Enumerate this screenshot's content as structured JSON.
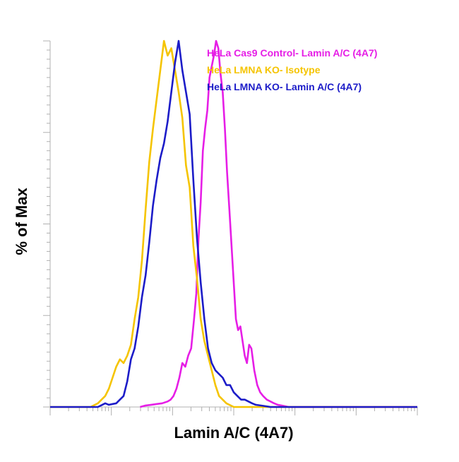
{
  "chart_data": {
    "type": "line",
    "title": "",
    "xlabel": "Lamin A/C (4A7)",
    "ylabel": "% of Max",
    "x_scale": "log",
    "xlim": [
      0,
      100
    ],
    "ylim": [
      0,
      100
    ],
    "grid": false,
    "legend_position": "top-right",
    "x_tick_labels": [],
    "y_tick_labels": [],
    "series": [
      {
        "name": "HeLa Cas9 Control- Lamin A/C (4A7)",
        "color": "#e61ee6",
        "x": [
          24.5,
          26,
          27.5,
          29,
          30.5,
          32,
          32.8,
          33.6,
          34.4,
          35.2,
          36,
          36.8,
          37.6,
          38.4,
          39.2,
          39.8,
          40.4,
          41,
          41.6,
          42.2,
          42.8,
          43.4,
          44,
          44.6,
          45.2,
          45.8,
          46.4,
          47,
          47.6,
          48.2,
          48.8,
          49.4,
          50,
          50.6,
          51.2,
          51.8,
          52.4,
          53,
          53.6,
          54.2,
          54.8,
          55.6,
          56.4,
          57.2,
          58,
          59,
          60,
          61,
          62,
          63.5,
          65,
          100
        ],
        "y": [
          0,
          0.4,
          0.6,
          0.8,
          1,
          1.5,
          2,
          3,
          5,
          8,
          12,
          11,
          14,
          16,
          24,
          31,
          46,
          56,
          70,
          76,
          81,
          90,
          93,
          96,
          100,
          98,
          91,
          86,
          76,
          64,
          54,
          44,
          34,
          24,
          21,
          22,
          18,
          14,
          12,
          17,
          16,
          10,
          6,
          4,
          3,
          2,
          1.5,
          1,
          0.6,
          0.3,
          0,
          0
        ]
      },
      {
        "name": "HeLa LMNA KO- Isotype",
        "color": "#f5c400",
        "x": [
          0,
          11,
          12,
          13,
          14,
          15,
          16,
          17,
          18,
          19,
          20,
          21,
          22,
          23,
          24,
          25,
          26,
          27,
          28,
          29,
          30,
          31,
          32,
          33,
          34,
          35,
          36,
          37,
          38,
          39,
          40,
          41,
          42,
          43,
          44,
          45,
          46,
          48,
          50,
          100
        ],
        "y": [
          0,
          0,
          0.5,
          1,
          2,
          3,
          5,
          8,
          11,
          13,
          12,
          14,
          17,
          24,
          30,
          40,
          54,
          67,
          76,
          84,
          92,
          100,
          96,
          98,
          92,
          86,
          79,
          66,
          60,
          44,
          35,
          24,
          18,
          14,
          10,
          6,
          3,
          1,
          0,
          0
        ]
      },
      {
        "name": "HeLa LMNA KO- Lamin A/C (4A7)",
        "color": "#1c1cc8",
        "x": [
          0,
          13,
          14,
          15,
          16,
          17,
          18,
          19,
          20,
          21,
          22,
          23,
          24,
          25,
          26,
          27,
          28,
          29,
          30,
          31,
          32,
          33,
          34,
          35,
          36,
          37,
          38,
          39,
          40,
          41,
          42,
          43,
          44,
          45,
          46,
          47,
          48,
          49,
          50,
          51,
          52,
          53,
          54,
          55,
          56,
          58,
          60,
          100
        ],
        "y": [
          0,
          0,
          0.5,
          1,
          0.6,
          0.8,
          1,
          2,
          3,
          7,
          13,
          16,
          22,
          30,
          36,
          45,
          55,
          62,
          68,
          72,
          78,
          86,
          94,
          100,
          92,
          86,
          80,
          62,
          46,
          34,
          24,
          16,
          12,
          10,
          9,
          8,
          6,
          6,
          4,
          3,
          2,
          2,
          1.5,
          1,
          0.6,
          0.3,
          0,
          0
        ]
      }
    ]
  }
}
